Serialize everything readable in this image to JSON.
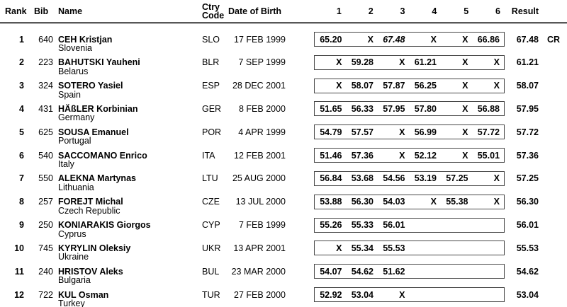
{
  "header": {
    "rank": "Rank",
    "bib": "Bib",
    "name": "Name",
    "ctry_line1": "Ctry",
    "ctry_line2": "Code",
    "dob": "Date of Birth",
    "attempts": [
      "1",
      "2",
      "3",
      "4",
      "5",
      "6"
    ],
    "result": "Result"
  },
  "rows": [
    {
      "rank": "1",
      "bib": "640",
      "name": "CEH Kristjan",
      "country": "Slovenia",
      "code": "SLO",
      "dob": "17 FEB 1999",
      "attempts": [
        "65.20",
        "X",
        "67.48",
        "X",
        "X",
        "66.86"
      ],
      "italic_attempt": 2,
      "result": "67.48",
      "note": "CR"
    },
    {
      "rank": "2",
      "bib": "223",
      "name": "BAHUTSKI Yauheni",
      "country": "Belarus",
      "code": "BLR",
      "dob": "7 SEP 1999",
      "attempts": [
        "X",
        "59.28",
        "X",
        "61.21",
        "X",
        "X"
      ],
      "result": "61.21"
    },
    {
      "rank": "3",
      "bib": "324",
      "name": "SOTERO Yasiel",
      "country": "Spain",
      "code": "ESP",
      "dob": "28 DEC 2001",
      "attempts": [
        "X",
        "58.07",
        "57.87",
        "56.25",
        "X",
        "X"
      ],
      "result": "58.07"
    },
    {
      "rank": "4",
      "bib": "431",
      "name": "HÄßLER Korbinian",
      "country": "Germany",
      "code": "GER",
      "dob": "8 FEB 2000",
      "attempts": [
        "51.65",
        "56.33",
        "57.95",
        "57.80",
        "X",
        "56.88"
      ],
      "result": "57.95"
    },
    {
      "rank": "5",
      "bib": "625",
      "name": "SOUSA Emanuel",
      "country": "Portugal",
      "code": "POR",
      "dob": "4 APR 1999",
      "attempts": [
        "54.79",
        "57.57",
        "X",
        "56.99",
        "X",
        "57.72"
      ],
      "result": "57.72"
    },
    {
      "rank": "6",
      "bib": "540",
      "name": "SACCOMANO Enrico",
      "country": "Italy",
      "code": "ITA",
      "dob": "12 FEB 2001",
      "attempts": [
        "51.46",
        "57.36",
        "X",
        "52.12",
        "X",
        "55.01"
      ],
      "result": "57.36"
    },
    {
      "rank": "7",
      "bib": "550",
      "name": "ALEKNA Martynas",
      "country": "Lithuania",
      "code": "LTU",
      "dob": "25 AUG 2000",
      "attempts": [
        "56.84",
        "53.68",
        "54.56",
        "53.19",
        "57.25",
        "X"
      ],
      "result": "57.25"
    },
    {
      "rank": "8",
      "bib": "257",
      "name": "FOREJT Michal",
      "country": "Czech Republic",
      "code": "CZE",
      "dob": "13 JUL 2000",
      "attempts": [
        "53.88",
        "56.30",
        "54.03",
        "X",
        "55.38",
        "X"
      ],
      "result": "56.30"
    },
    {
      "rank": "9",
      "bib": "250",
      "name": "KONIARAKIS Giorgos",
      "country": "Cyprus",
      "code": "CYP",
      "dob": "7 FEB 1999",
      "attempts": [
        "55.26",
        "55.33",
        "56.01",
        "",
        "",
        ""
      ],
      "result": "56.01"
    },
    {
      "rank": "10",
      "bib": "745",
      "name": "KYRYLIN Oleksiy",
      "country": "Ukraine",
      "code": "UKR",
      "dob": "13 APR 2001",
      "attempts": [
        "X",
        "55.34",
        "55.53",
        "",
        "",
        ""
      ],
      "result": "55.53"
    },
    {
      "rank": "11",
      "bib": "240",
      "name": "HRISTOV Aleks",
      "country": "Bulgaria",
      "code": "BUL",
      "dob": "23 MAR 2000",
      "attempts": [
        "54.07",
        "54.62",
        "51.62",
        "",
        "",
        ""
      ],
      "result": "54.62"
    },
    {
      "rank": "12",
      "bib": "722",
      "name": "KUL Osman",
      "country": "Turkey",
      "code": "TUR",
      "dob": "27 FEB 2000",
      "attempts": [
        "52.92",
        "53.04",
        "X",
        "",
        "",
        ""
      ],
      "result": "53.04"
    }
  ]
}
